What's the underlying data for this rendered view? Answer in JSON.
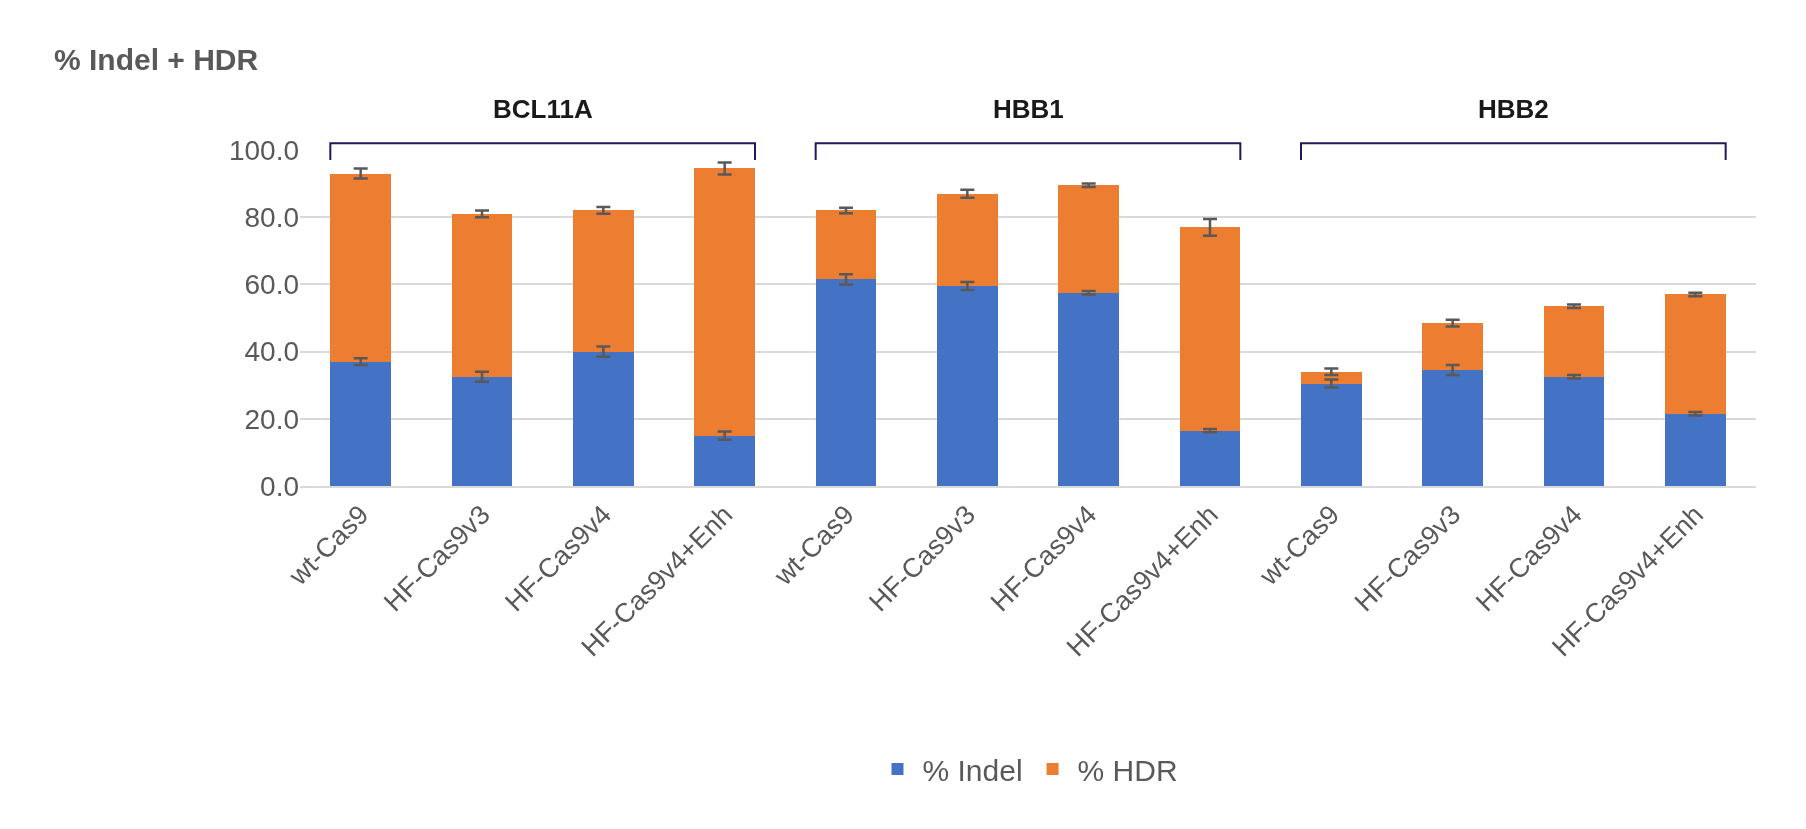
{
  "chart_data": {
    "type": "bar",
    "stacked": true,
    "ylabel": "% Indel + HDR",
    "categories": [
      "wt-Cas9",
      "HF-Cas9v3",
      "HF-Cas9v4",
      "HF-Cas9v4+Enh",
      "wt-Cas9",
      "HF-Cas9v3",
      "HF-Cas9v4",
      "HF-Cas9v4+Enh",
      "wt-Cas9",
      "HF-Cas9v3",
      "HF-Cas9v4",
      "HF-Cas9v4+Enh"
    ],
    "series": [
      {
        "name": "% Indel",
        "color": "#4472c4",
        "values": [
          37.0,
          32.5,
          40.0,
          15.0,
          61.5,
          59.5,
          57.5,
          16.5,
          30.5,
          34.5,
          32.5,
          21.5
        ],
        "errors": [
          1.0,
          1.5,
          1.5,
          1.2,
          1.5,
          1.2,
          0.5,
          0.5,
          1.2,
          1.5,
          0.5,
          0.5
        ]
      },
      {
        "name": "% HDR",
        "color": "#ed7d31",
        "values": [
          56.0,
          48.5,
          42.0,
          79.5,
          20.5,
          27.5,
          32.0,
          60.5,
          3.5,
          14.0,
          21.0,
          35.5
        ],
        "errors": [
          1.5,
          1.0,
          1.0,
          1.8,
          0.8,
          1.2,
          0.5,
          2.5,
          1.0,
          1.0,
          0.5,
          0.5
        ]
      }
    ],
    "annotations": [
      "BCL11A",
      "HBB1",
      "HBB2"
    ],
    "ylim": [
      0,
      100
    ],
    "yticks": [
      {
        "value": 0,
        "label": "0.0"
      },
      {
        "value": 20,
        "label": "20.0"
      },
      {
        "value": 40,
        "label": "40.0"
      },
      {
        "value": 60,
        "label": "60.0"
      },
      {
        "value": 80,
        "label": "80.0"
      },
      {
        "value": 100,
        "label": "100.0"
      }
    ],
    "grid": "y",
    "legend": "bottom"
  }
}
